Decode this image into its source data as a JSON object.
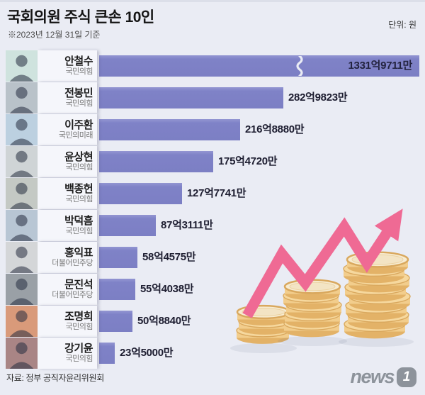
{
  "header": {
    "title": "국회의원 주식 큰손 10인",
    "subtitle": "※2023년 12월 31일 기준",
    "unit": "단위: 원"
  },
  "footer": {
    "source": "자료: 정부 공직자윤리위원회",
    "logo_text": "news",
    "logo_badge": "1"
  },
  "colors": {
    "background": "#eaecf4",
    "bar": "#7f82c7",
    "panel": "#f5f6fb",
    "arrow_pink": "#ef6a94",
    "coin_gold": "#f2cd8c"
  },
  "icons": {
    "illustration": "coin-stacks-with-rising-arrow",
    "photo_placeholder": "person-silhouette-icon",
    "axis_break": "bar-break-squiggle"
  },
  "chart_data": {
    "type": "bar",
    "orientation": "horizontal",
    "title": "국회의원 주식 큰손 10인",
    "subtitle": "※2023년 12월 31일 기준",
    "unit": "원",
    "source": "정부 공직자윤리위원회",
    "xlim_eok": [
      0,
      300
    ],
    "axis_break_note": "1위 막대는 물결선으로 축 생략 표시",
    "rows": [
      {
        "rank": 1,
        "name": "안철수",
        "party": "국민의힘",
        "value_label": "1331억9711만",
        "value_eok": 1331.9711,
        "axis_break": true,
        "photo_bg": "#cfe3de"
      },
      {
        "rank": 2,
        "name": "전봉민",
        "party": "국민의힘",
        "value_label": "282억9823만",
        "value_eok": 282.9823,
        "axis_break": false,
        "photo_bg": "#b9c2c9"
      },
      {
        "rank": 3,
        "name": "이주환",
        "party": "국민의미래",
        "value_label": "216억8880만",
        "value_eok": 216.888,
        "axis_break": false,
        "photo_bg": "#bcd0e0"
      },
      {
        "rank": 4,
        "name": "윤상현",
        "party": "국민의힘",
        "value_label": "175억4720만",
        "value_eok": 175.472,
        "axis_break": false,
        "photo_bg": "#cfd4d6"
      },
      {
        "rank": 5,
        "name": "백종헌",
        "party": "국민의힘",
        "value_label": "127억7741만",
        "value_eok": 127.7741,
        "axis_break": false,
        "photo_bg": "#c4c9c4"
      },
      {
        "rank": 6,
        "name": "박덕흠",
        "party": "국민의힘",
        "value_label": "87억3111만",
        "value_eok": 87.3111,
        "axis_break": false,
        "photo_bg": "#b8c6d4"
      },
      {
        "rank": 7,
        "name": "홍익표",
        "party": "더불어민주당",
        "value_label": "58억4575만",
        "value_eok": 58.4575,
        "axis_break": false,
        "photo_bg": "#d4d6d8"
      },
      {
        "rank": 8,
        "name": "문진석",
        "party": "더불어민주당",
        "value_label": "55억4038만",
        "value_eok": 55.4038,
        "axis_break": false,
        "photo_bg": "#9aa0a6"
      },
      {
        "rank": 9,
        "name": "조명희",
        "party": "국민의힘",
        "value_label": "50억8840만",
        "value_eok": 50.884,
        "axis_break": false,
        "photo_bg": "#d99a7a"
      },
      {
        "rank": 10,
        "name": "강기윤",
        "party": "국민의힘",
        "value_label": "23억5000만",
        "value_eok": 23.5,
        "axis_break": false,
        "photo_bg": "#a98585"
      }
    ]
  }
}
